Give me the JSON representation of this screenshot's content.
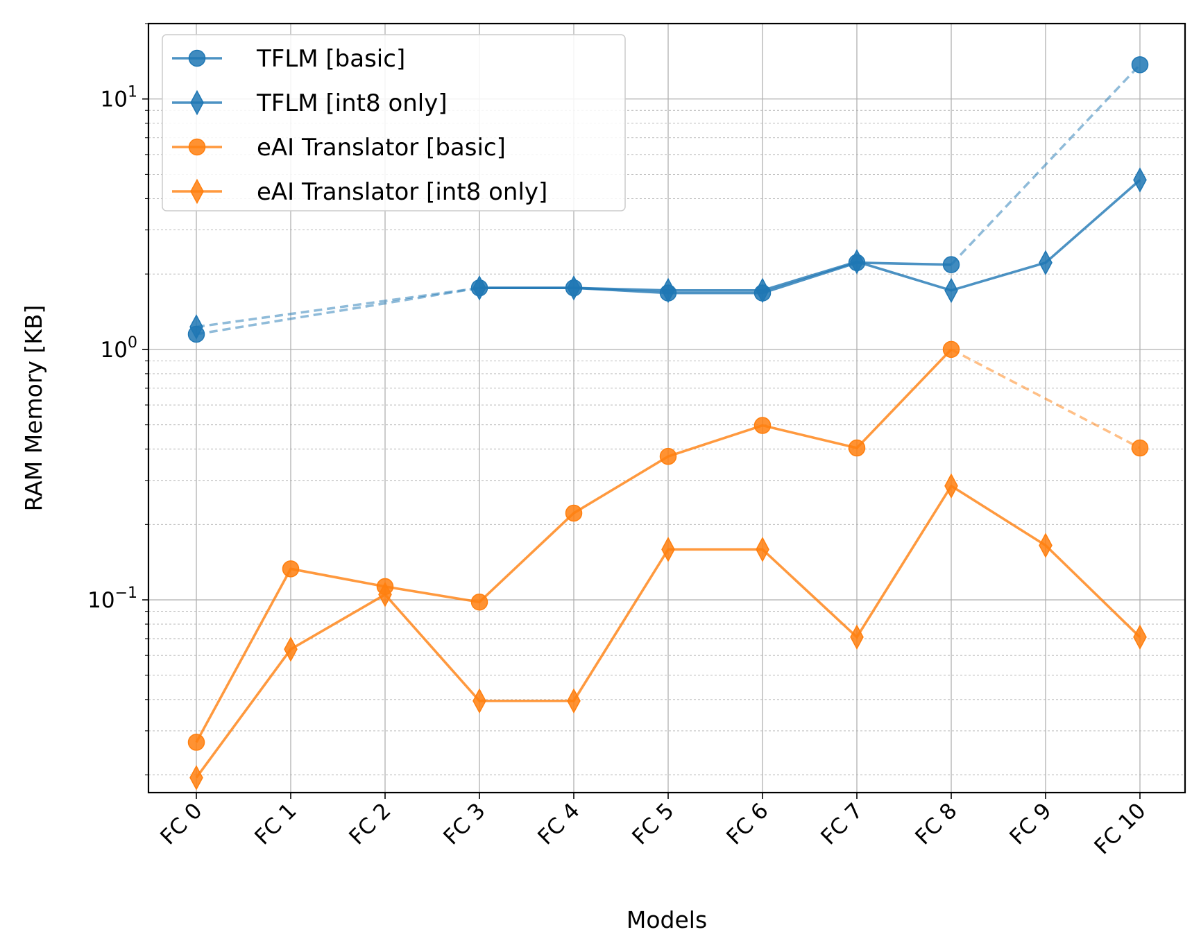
{
  "chart_data": {
    "type": "line",
    "xlabel": "Models",
    "ylabel": "RAM Memory [KB]",
    "yscale": "log",
    "ylim": [
      0.017,
      20
    ],
    "yticks": [
      {
        "value": 0.1,
        "base": "10",
        "exp": "−1"
      },
      {
        "value": 1,
        "base": "10",
        "exp": "0"
      },
      {
        "value": 10,
        "base": "10",
        "exp": "1"
      }
    ],
    "grid": true,
    "legend_position": "top-left",
    "categories": [
      "FC 0",
      "FC 1",
      "FC 2",
      "FC 3",
      "FC 4",
      "FC 5",
      "FC 6",
      "FC 7",
      "FC 8",
      "FC 9",
      "FC 10"
    ],
    "series": [
      {
        "name": "TFLM [basic]",
        "color": "#1f77b4",
        "marker": "circle",
        "values": [
          1.15,
          null,
          null,
          1.76,
          1.76,
          1.68,
          1.68,
          2.22,
          2.18,
          null,
          13.7
        ],
        "dashed_links": [
          [
            0,
            3
          ],
          [
            8,
            10
          ]
        ]
      },
      {
        "name": "TFLM [int8 only]",
        "color": "#1f77b4",
        "marker": "diamond",
        "values": [
          1.23,
          null,
          null,
          1.76,
          1.76,
          1.72,
          1.72,
          2.24,
          1.72,
          2.22,
          4.75
        ],
        "dashed_links": [
          [
            0,
            3
          ]
        ]
      },
      {
        "name": "eAI Translator [basic]",
        "color": "#ff7f0e",
        "marker": "circle",
        "values": [
          0.027,
          0.133,
          0.113,
          0.098,
          0.222,
          0.374,
          0.497,
          0.404,
          1.0,
          null,
          0.404
        ],
        "dashed_links": [
          [
            8,
            10
          ]
        ]
      },
      {
        "name": "eAI Translator [int8 only]",
        "color": "#ff7f0e",
        "marker": "diamond",
        "values": [
          0.0195,
          0.0635,
          0.105,
          0.0395,
          0.0395,
          0.159,
          0.159,
          0.071,
          0.285,
          0.165,
          0.071
        ],
        "dashed_links": []
      }
    ]
  }
}
